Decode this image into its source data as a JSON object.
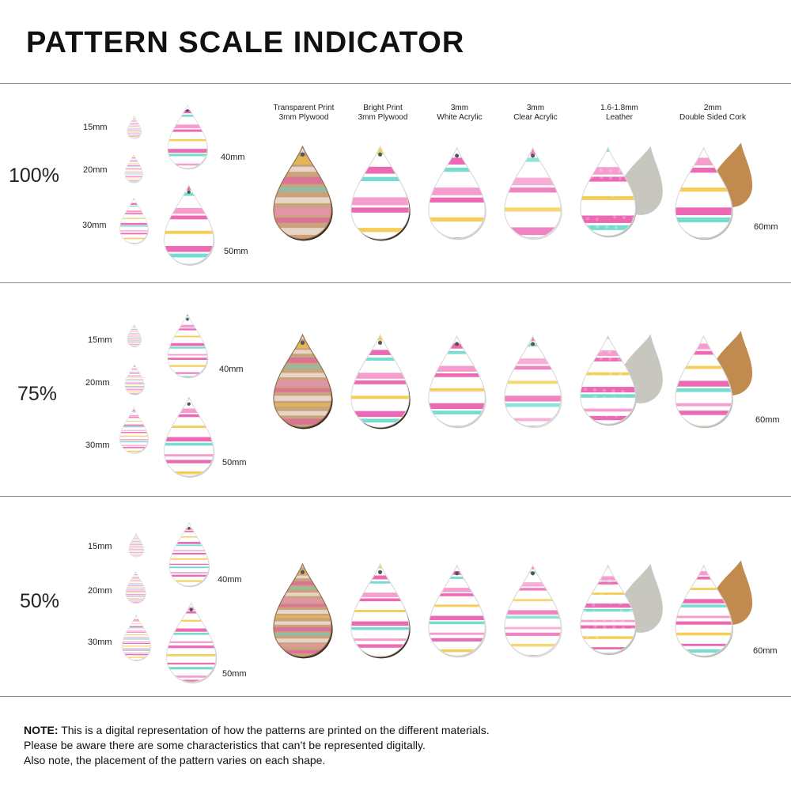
{
  "title": "PATTERN SCALE INDICATOR",
  "materials": [
    {
      "line1": "Transparent Print",
      "line2": "3mm Plywood"
    },
    {
      "line1": "Bright Print",
      "line2": "3mm Plywood"
    },
    {
      "line1": "3mm",
      "line2": "White Acrylic"
    },
    {
      "line1": "3mm",
      "line2": "Clear Acrylic"
    },
    {
      "line1": "1.6-1.8mm",
      "line2": "Leather"
    },
    {
      "line1": "2mm",
      "line2": "Double Sided Cork"
    }
  ],
  "sizes": [
    "15mm",
    "20mm",
    "30mm",
    "40mm",
    "50mm",
    "60mm"
  ],
  "sections": [
    {
      "scale": "100%"
    },
    {
      "scale": "75%"
    },
    {
      "scale": "50%"
    }
  ],
  "note": {
    "label": "NOTE:",
    "line1": "This is a digital representation of how the patterns are printed on the different materials.",
    "line2": "Please be aware there are some characteristics that can’t be represented digitally.",
    "line3": "Also note, the placement of the pattern varies on each shape."
  },
  "colors": {
    "pink": "#e94fa6",
    "yellow": "#f3c63a",
    "teal": "#5fd6c8",
    "plywood": "#c9a27e",
    "cork": "#c18a4f",
    "leather_back": "#c7c7c0",
    "edge": "#3a2a20"
  }
}
